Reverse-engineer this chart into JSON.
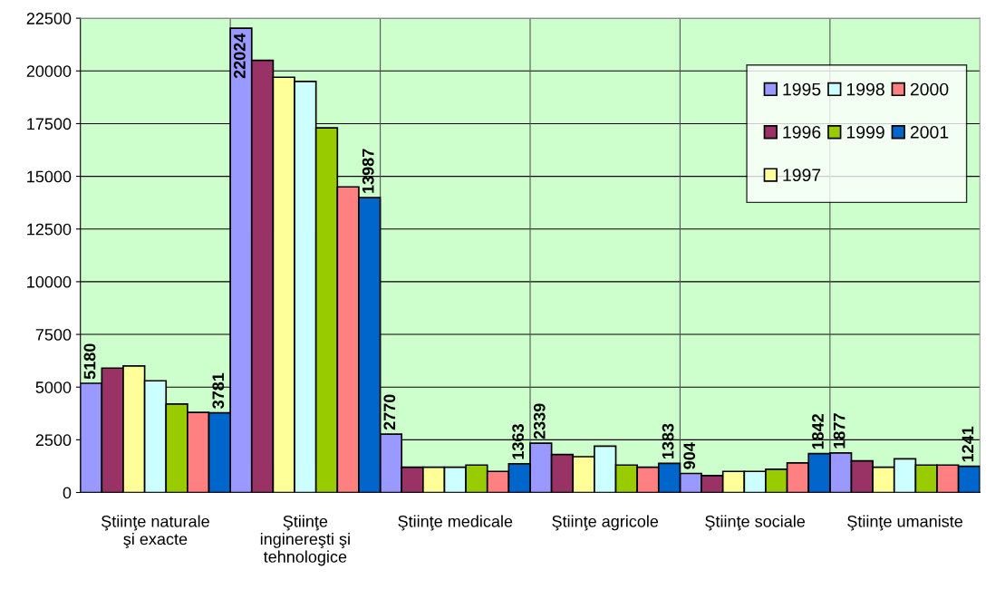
{
  "chart_data": {
    "type": "bar",
    "categories": [
      "Ştiinţe naturale\nşi exacte",
      "Ştiinţe\ninginereşti şi\ntehnologice",
      "Ştiinţe medicale",
      "Ştiinţe agricole",
      "Ştiinţe sociale",
      "Ştiinţe umaniste"
    ],
    "series": [
      {
        "name": "1995",
        "color": "#9999ff",
        "values": [
          5180,
          22024,
          2770,
          2339,
          904,
          1877
        ],
        "value_labels": [
          "5180",
          "22024",
          "2770",
          "2339",
          "904",
          "1877"
        ]
      },
      {
        "name": "1996",
        "color": "#993366",
        "values": [
          5900,
          20500,
          1200,
          1800,
          800,
          1500
        ]
      },
      {
        "name": "1997",
        "color": "#ffff99",
        "values": [
          6000,
          19700,
          1200,
          1700,
          1000,
          1200
        ]
      },
      {
        "name": "1998",
        "color": "#ccffff",
        "values": [
          5300,
          19500,
          1200,
          2200,
          1000,
          1600
        ]
      },
      {
        "name": "1999",
        "color": "#99cc00",
        "values": [
          4200,
          17300,
          1300,
          1300,
          1100,
          1300
        ]
      },
      {
        "name": "2000",
        "color": "#ff8080",
        "values": [
          3800,
          14500,
          1000,
          1200,
          1400,
          1300
        ]
      },
      {
        "name": "2001",
        "color": "#0066cc",
        "values": [
          3781,
          13987,
          1363,
          1383,
          1842,
          1241
        ],
        "value_labels": [
          "3781",
          "13987",
          "1363",
          "1383",
          "1842",
          "1241"
        ]
      }
    ],
    "ylim": [
      0,
      22500
    ],
    "yticks": [
      0,
      2500,
      5000,
      7500,
      10000,
      12500,
      15000,
      17500,
      20000,
      22500
    ],
    "grid": true,
    "legend": "top right"
  }
}
